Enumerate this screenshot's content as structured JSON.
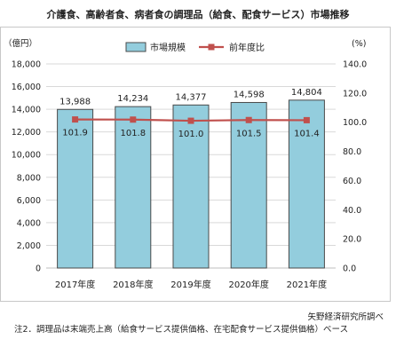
{
  "title": "介護食、高齢者食、病者食の調理品（給食、配食サービス）市場推移",
  "source": "矢野経済研究所調べ",
  "note": "注2．調理品は末端売上高（給食サービス提供価格、在宅配食サービス提供価格）ベース",
  "chart_data": {
    "type": "bar",
    "categories": [
      "2017年度",
      "2018年度",
      "2019年度",
      "2020年度",
      "2021年度"
    ],
    "series": [
      {
        "name": "市場規模",
        "type": "bar",
        "axis": "left",
        "values": [
          13988,
          14234,
          14377,
          14598,
          14804
        ],
        "labels": [
          "13,988",
          "14,234",
          "14,377",
          "14,598",
          "14,804"
        ],
        "color": "#93cddd"
      },
      {
        "name": "前年度比",
        "type": "line",
        "axis": "right",
        "values": [
          101.9,
          101.8,
          101.0,
          101.5,
          101.4
        ],
        "labels": [
          "101.9",
          "101.8",
          "101.0",
          "101.5",
          "101.4"
        ],
        "color": "#c0504d"
      }
    ],
    "y_left": {
      "unit": "（億円）",
      "range": [
        0,
        18000
      ],
      "ticks": [
        "0",
        "2,000",
        "4,000",
        "6,000",
        "8,000",
        "10,000",
        "12,000",
        "14,000",
        "16,000",
        "18,000"
      ]
    },
    "y_right": {
      "unit": "(%)",
      "range": [
        0,
        140
      ],
      "ticks": [
        "0.0",
        "20.0",
        "40.0",
        "60.0",
        "80.0",
        "100.0",
        "120.0",
        "140.0"
      ]
    },
    "legend_position": "top",
    "grid": true,
    "bar_border": "#4a4a4a"
  }
}
